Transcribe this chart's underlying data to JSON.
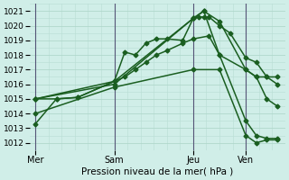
{
  "title": "",
  "xlabel": "Pression niveau de la mer( hPa )",
  "ylim": [
    1011.5,
    1021.5
  ],
  "yticks": [
    1012,
    1013,
    1014,
    1015,
    1016,
    1017,
    1018,
    1019,
    1020,
    1021
  ],
  "bg_color": "#d0eee8",
  "grid_color_major": "#b0d8cc",
  "grid_color_minor": "#b8ddd4",
  "line_color": "#1a5e20",
  "marker": "D",
  "markersize": 2.5,
  "linewidth": 1.1,
  "xtick_labels": [
    "Mer",
    "Sam",
    "Jeu",
    "Ven"
  ],
  "xtick_positions": [
    0,
    30,
    60,
    80
  ],
  "xlim": [
    -2,
    95
  ],
  "vline_color": "#555577",
  "vline_positions": [
    0,
    30,
    60,
    80
  ],
  "series": [
    {
      "x": [
        0,
        8,
        16,
        30,
        34,
        38,
        42,
        46,
        50,
        56,
        60,
        62,
        64,
        66,
        70,
        74,
        80,
        84,
        88,
        92
      ],
      "y": [
        1013.3,
        1015.0,
        1015.1,
        1016.2,
        1018.2,
        1018.0,
        1018.8,
        1019.1,
        1019.1,
        1019.0,
        1020.5,
        1020.6,
        1020.6,
        1020.6,
        1020.0,
        1019.5,
        1017.8,
        1017.5,
        1016.5,
        1016.5
      ]
    },
    {
      "x": [
        0,
        8,
        16,
        30,
        34,
        38,
        42,
        46,
        50,
        56,
        60,
        66,
        70,
        80,
        84,
        88,
        92
      ],
      "y": [
        1015.0,
        1015.0,
        1015.1,
        1016.2,
        1016.5,
        1017.0,
        1017.5,
        1018.0,
        1018.3,
        1018.8,
        1019.1,
        1019.3,
        1018.0,
        1017.0,
        1016.5,
        1016.5,
        1016.0
      ]
    },
    {
      "x": [
        0,
        30,
        60,
        64,
        70,
        80,
        84,
        88,
        92
      ],
      "y": [
        1015.0,
        1016.2,
        1020.5,
        1021.0,
        1020.3,
        1017.0,
        1016.5,
        1015.0,
        1014.5
      ]
    },
    {
      "x": [
        0,
        30,
        60,
        64,
        70,
        80,
        84,
        88,
        92
      ],
      "y": [
        1015.0,
        1016.0,
        1020.5,
        1021.0,
        1018.0,
        1013.5,
        1012.5,
        1012.3,
        1012.3
      ]
    },
    {
      "x": [
        0,
        30,
        60,
        70,
        80,
        84,
        88,
        92
      ],
      "y": [
        1014.0,
        1015.8,
        1017.0,
        1017.0,
        1012.5,
        1012.0,
        1012.2,
        1012.2
      ]
    }
  ]
}
